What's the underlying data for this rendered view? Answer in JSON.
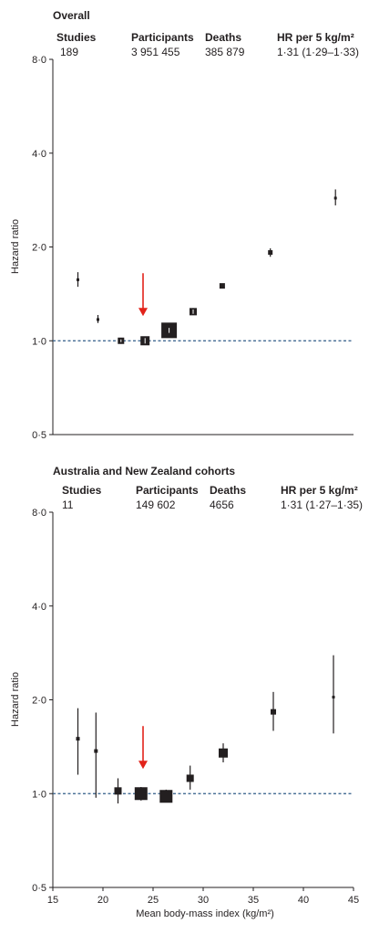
{
  "panels": [
    {
      "title": "Overall",
      "header": {
        "studies_label": "Studies",
        "participants_label": "Participants",
        "deaths_label": "Deaths",
        "hr_label": "HR per 5 kg/m²"
      },
      "values": {
        "studies": "189",
        "participants": "3 951 455",
        "deaths": "385 879",
        "hr": "1·31 (1·29–1·33)"
      }
    },
    {
      "title": "Australia and New Zealand cohorts",
      "header": {
        "studies_label": "Studies",
        "participants_label": "Participants",
        "deaths_label": "Deaths",
        "hr_label": "HR per 5 kg/m²"
      },
      "values": {
        "studies": "11",
        "participants": "149 602",
        "deaths": "4656",
        "hr": "1·31 (1·27–1·35)"
      }
    }
  ],
  "chart_data": [
    {
      "type": "scatter",
      "title": "Overall",
      "ylabel": "Hazard ratio",
      "xlabel": "",
      "yscale": "log",
      "ylim": [
        0.5,
        8.0
      ],
      "xlim": [
        15,
        45
      ],
      "yticks": [
        "0·5",
        "1·0",
        "2·0",
        "4·0",
        "8·0"
      ],
      "xticks": [],
      "reference_line": 1.0,
      "arrow_at_x": 24,
      "points": [
        {
          "x": 17.5,
          "y": 1.57,
          "lo": 1.49,
          "hi": 1.66,
          "size": 3
        },
        {
          "x": 19.5,
          "y": 1.17,
          "lo": 1.14,
          "hi": 1.21,
          "size": 3
        },
        {
          "x": 21.8,
          "y": 1.0,
          "lo": 0.99,
          "hi": 1.01,
          "size": 7
        },
        {
          "x": 24.2,
          "y": 1.0,
          "lo": 0.98,
          "hi": 1.02,
          "size": 10
        },
        {
          "x": 26.6,
          "y": 1.08,
          "lo": 1.06,
          "hi": 1.1,
          "size": 17
        },
        {
          "x": 29.0,
          "y": 1.24,
          "lo": 1.22,
          "hi": 1.26,
          "size": 8
        },
        {
          "x": 31.9,
          "y": 1.5,
          "lo": 1.48,
          "hi": 1.52,
          "size": 6
        },
        {
          "x": 36.7,
          "y": 1.92,
          "lo": 1.86,
          "hi": 1.98,
          "size": 5
        },
        {
          "x": 43.2,
          "y": 2.87,
          "lo": 2.72,
          "hi": 3.06,
          "size": 3
        }
      ]
    },
    {
      "type": "scatter",
      "title": "Australia and New Zealand cohorts",
      "ylabel": "Hazard ratio",
      "xlabel": "Mean body-mass index (kg/m²)",
      "yscale": "log",
      "ylim": [
        0.5,
        8.0
      ],
      "xlim": [
        15,
        45
      ],
      "yticks": [
        "0·5",
        "1·0",
        "2·0",
        "4·0",
        "8·0"
      ],
      "xticks": [
        "15",
        "20",
        "25",
        "30",
        "35",
        "40",
        "45"
      ],
      "reference_line": 1.0,
      "arrow_at_x": 24,
      "points": [
        {
          "x": 17.5,
          "y": 1.5,
          "lo": 1.15,
          "hi": 1.88,
          "size": 4
        },
        {
          "x": 19.3,
          "y": 1.37,
          "lo": 0.97,
          "hi": 1.82,
          "size": 4
        },
        {
          "x": 21.5,
          "y": 1.02,
          "lo": 0.93,
          "hi": 1.12,
          "size": 8
        },
        {
          "x": 23.8,
          "y": 1.0,
          "lo": 0.95,
          "hi": 1.05,
          "size": 14
        },
        {
          "x": 26.3,
          "y": 0.98,
          "lo": 0.94,
          "hi": 1.03,
          "size": 14
        },
        {
          "x": 28.7,
          "y": 1.12,
          "lo": 1.03,
          "hi": 1.23,
          "size": 8
        },
        {
          "x": 32.0,
          "y": 1.35,
          "lo": 1.26,
          "hi": 1.45,
          "size": 10
        },
        {
          "x": 37.0,
          "y": 1.83,
          "lo": 1.59,
          "hi": 2.12,
          "size": 6
        },
        {
          "x": 43.0,
          "y": 2.04,
          "lo": 1.56,
          "hi": 2.78,
          "size": 3
        }
      ]
    }
  ],
  "colors": {
    "ink": "#231f20",
    "reference": "#2e5b87",
    "arrow": "#e2231a"
  }
}
